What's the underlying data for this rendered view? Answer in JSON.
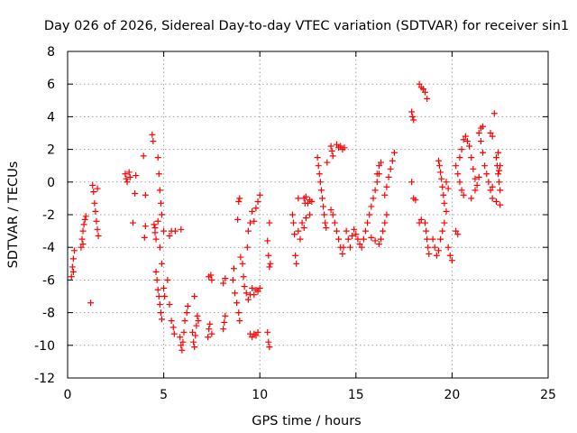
{
  "chart_data": {
    "type": "scatter",
    "title": "Day 026 of 2026, Sidereal Day-to-day VTEC variation (SDTVAR) for receiver sin1",
    "xlabel": "GPS time / hours",
    "ylabel": "SDTVAR / TECUs",
    "xlim": [
      0,
      25
    ],
    "ylim": [
      -12,
      8
    ],
    "xticks": [
      "0",
      "5",
      "10",
      "15",
      "20",
      "25"
    ],
    "yticks": [
      "-12",
      "-10",
      "-8",
      "-6",
      "-4",
      "-2",
      "0",
      "2",
      "4",
      "6",
      "8"
    ],
    "grid": true,
    "marker": "+",
    "color": "#ff0000",
    "series": [
      {
        "name": "sin1",
        "points": [
          [
            0.2,
            -5.8
          ],
          [
            0.25,
            -5.2
          ],
          [
            0.3,
            -4.7
          ],
          [
            0.35,
            -4.2
          ],
          [
            0.3,
            -5.5
          ],
          [
            0.7,
            -4.0
          ],
          [
            0.75,
            -3.5
          ],
          [
            0.8,
            -3.0
          ],
          [
            0.85,
            -2.6
          ],
          [
            0.9,
            -2.3
          ],
          [
            0.95,
            -2.1
          ],
          [
            0.8,
            -3.8
          ],
          [
            1.2,
            -7.4
          ],
          [
            1.3,
            -0.2
          ],
          [
            1.35,
            -0.6
          ],
          [
            1.4,
            -1.3
          ],
          [
            1.45,
            -1.8
          ],
          [
            1.5,
            -2.4
          ],
          [
            1.55,
            -2.9
          ],
          [
            1.6,
            -3.3
          ],
          [
            1.55,
            -0.4
          ],
          [
            3.0,
            0.5
          ],
          [
            3.05,
            0.2
          ],
          [
            3.1,
            0.0
          ],
          [
            3.2,
            0.6
          ],
          [
            3.25,
            0.3
          ],
          [
            3.4,
            -2.5
          ],
          [
            3.5,
            -0.7
          ],
          [
            3.55,
            0.4
          ],
          [
            3.95,
            1.6
          ],
          [
            4.0,
            -3.4
          ],
          [
            4.05,
            -0.8
          ],
          [
            4.05,
            -2.7
          ],
          [
            4.4,
            2.9
          ],
          [
            4.45,
            2.5
          ],
          [
            4.5,
            -2.6
          ],
          [
            4.55,
            -3.1
          ],
          [
            4.6,
            -3.5
          ],
          [
            4.6,
            -5.5
          ],
          [
            4.65,
            -6.0
          ],
          [
            4.7,
            -6.6
          ],
          [
            4.75,
            -7.0
          ],
          [
            4.8,
            -7.5
          ],
          [
            4.85,
            -8.0
          ],
          [
            4.9,
            -8.4
          ],
          [
            4.55,
            -2.8
          ],
          [
            4.7,
            -2.4
          ],
          [
            4.8,
            -4.0
          ],
          [
            4.9,
            -5.0
          ],
          [
            5.0,
            -6.5
          ],
          [
            5.05,
            -7.0
          ],
          [
            4.7,
            1.5
          ],
          [
            4.75,
            0.5
          ],
          [
            4.8,
            -0.5
          ],
          [
            4.85,
            -1.3
          ],
          [
            4.9,
            -2.0
          ],
          [
            5.0,
            -3.0
          ],
          [
            5.2,
            -6.0
          ],
          [
            5.3,
            -7.5
          ],
          [
            5.4,
            -8.5
          ],
          [
            5.5,
            -8.9
          ],
          [
            5.55,
            -9.3
          ],
          [
            5.3,
            -3.3
          ],
          [
            5.4,
            -3.0
          ],
          [
            5.6,
            -3.0
          ],
          [
            5.9,
            -2.9
          ],
          [
            5.85,
            -9.5
          ],
          [
            5.9,
            -10.0
          ],
          [
            5.95,
            -10.3
          ],
          [
            6.0,
            -9.8
          ],
          [
            6.05,
            -9.2
          ],
          [
            6.1,
            -8.5
          ],
          [
            6.2,
            -8.0
          ],
          [
            6.25,
            -7.6
          ],
          [
            6.5,
            -9.2
          ],
          [
            6.55,
            -9.8
          ],
          [
            6.6,
            -10.1
          ],
          [
            6.65,
            -9.4
          ],
          [
            6.7,
            -8.8
          ],
          [
            6.75,
            -8.2
          ],
          [
            6.6,
            -7.0
          ],
          [
            6.8,
            -8.5
          ],
          [
            7.3,
            -9.5
          ],
          [
            7.35,
            -9.0
          ],
          [
            7.4,
            -8.7
          ],
          [
            7.35,
            -5.8
          ],
          [
            7.45,
            -5.7
          ],
          [
            7.5,
            -6.0
          ],
          [
            7.5,
            -9.3
          ],
          [
            8.1,
            -9.0
          ],
          [
            8.15,
            -8.6
          ],
          [
            8.2,
            -8.2
          ],
          [
            8.1,
            -6.2
          ],
          [
            8.2,
            -5.9
          ],
          [
            8.6,
            -6.0
          ],
          [
            8.7,
            -6.8
          ],
          [
            8.8,
            -7.4
          ],
          [
            8.9,
            -8.0
          ],
          [
            8.95,
            -8.5
          ],
          [
            8.65,
            -5.3
          ],
          [
            8.9,
            -1.2
          ],
          [
            8.95,
            -1.0
          ],
          [
            8.85,
            -2.3
          ],
          [
            9.0,
            -4.6
          ],
          [
            9.1,
            -5.0
          ],
          [
            9.15,
            -5.8
          ],
          [
            9.2,
            -6.4
          ],
          [
            9.3,
            -6.8
          ],
          [
            9.4,
            -7.2
          ],
          [
            9.5,
            -6.9
          ],
          [
            9.6,
            -6.5
          ],
          [
            9.7,
            -6.9
          ],
          [
            9.8,
            -6.6
          ],
          [
            9.9,
            -6.7
          ],
          [
            10.0,
            -6.5
          ],
          [
            9.35,
            -4.0
          ],
          [
            9.4,
            -3.0
          ],
          [
            9.5,
            -2.5
          ],
          [
            9.6,
            -1.8
          ],
          [
            9.7,
            -2.4
          ],
          [
            9.8,
            -1.6
          ],
          [
            9.9,
            -1.2
          ],
          [
            10.0,
            -0.8
          ],
          [
            9.5,
            -9.3
          ],
          [
            9.6,
            -9.5
          ],
          [
            9.7,
            -9.3
          ],
          [
            9.8,
            -9.4
          ],
          [
            9.9,
            -9.2
          ],
          [
            10.4,
            -3.6
          ],
          [
            10.45,
            -4.5
          ],
          [
            10.5,
            -5.2
          ],
          [
            10.55,
            -5.0
          ],
          [
            10.5,
            -2.5
          ],
          [
            10.4,
            -9.2
          ],
          [
            10.45,
            -9.8
          ],
          [
            10.5,
            -10.1
          ],
          [
            11.7,
            -2.0
          ],
          [
            11.75,
            -2.5
          ],
          [
            11.8,
            -3.2
          ],
          [
            11.85,
            -4.5
          ],
          [
            11.9,
            -5.0
          ],
          [
            12.0,
            -3.0
          ],
          [
            12.1,
            -3.5
          ],
          [
            12.2,
            -2.5
          ],
          [
            12.3,
            -1.0
          ],
          [
            12.35,
            -1.3
          ],
          [
            12.4,
            -0.9
          ],
          [
            12.5,
            -1.3
          ],
          [
            12.6,
            -1.1
          ],
          [
            12.3,
            -2.8
          ],
          [
            12.4,
            -2.2
          ],
          [
            12.6,
            -2.0
          ],
          [
            12.0,
            -1.0
          ],
          [
            12.7,
            -1.2
          ],
          [
            13.0,
            1.5
          ],
          [
            13.05,
            1.0
          ],
          [
            13.1,
            0.5
          ],
          [
            13.15,
            0.0
          ],
          [
            13.2,
            -0.5
          ],
          [
            13.25,
            -1.0
          ],
          [
            13.3,
            -1.5
          ],
          [
            13.35,
            -2.0
          ],
          [
            13.4,
            -2.5
          ],
          [
            13.5,
            1.2
          ],
          [
            13.45,
            -2.8
          ],
          [
            13.7,
            2.2
          ],
          [
            13.75,
            1.9
          ],
          [
            13.8,
            1.6
          ],
          [
            13.7,
            -1.7
          ],
          [
            13.8,
            -2.0
          ],
          [
            13.9,
            -2.5
          ],
          [
            14.0,
            -3.0
          ],
          [
            14.1,
            -3.5
          ],
          [
            14.2,
            -4.0
          ],
          [
            14.3,
            -4.4
          ],
          [
            14.0,
            2.3
          ],
          [
            14.1,
            2.1
          ],
          [
            14.2,
            2.2
          ],
          [
            14.3,
            2.0
          ],
          [
            14.4,
            2.1
          ],
          [
            14.35,
            -4.0
          ],
          [
            14.5,
            -3.0
          ],
          [
            14.6,
            -3.5
          ],
          [
            14.7,
            -4.0
          ],
          [
            14.8,
            -3.3
          ],
          [
            14.9,
            -2.9
          ],
          [
            15.0,
            -3.2
          ],
          [
            15.1,
            -3.5
          ],
          [
            15.2,
            -3.8
          ],
          [
            15.3,
            -4.0
          ],
          [
            15.4,
            -3.5
          ],
          [
            15.5,
            -3.0
          ],
          [
            15.6,
            -2.5
          ],
          [
            15.7,
            -2.0
          ],
          [
            15.8,
            -1.5
          ],
          [
            15.9,
            -1.0
          ],
          [
            16.0,
            -0.5
          ],
          [
            16.1,
            0.0
          ],
          [
            16.2,
            0.5
          ],
          [
            16.3,
            -3.5
          ],
          [
            16.4,
            -3.0
          ],
          [
            16.5,
            -2.5
          ],
          [
            16.6,
            -2.0
          ],
          [
            16.2,
            -3.8
          ],
          [
            16.0,
            -3.6
          ],
          [
            15.8,
            -3.4
          ],
          [
            16.1,
            0.5
          ],
          [
            16.2,
            1.0
          ],
          [
            16.3,
            1.2
          ],
          [
            16.5,
            -0.8
          ],
          [
            16.6,
            -0.3
          ],
          [
            16.7,
            0.3
          ],
          [
            16.8,
            0.8
          ],
          [
            16.9,
            1.3
          ],
          [
            17.0,
            1.8
          ],
          [
            17.9,
            4.3
          ],
          [
            17.95,
            4.0
          ],
          [
            18.0,
            3.8
          ],
          [
            17.9,
            0.0
          ],
          [
            18.0,
            -1.0
          ],
          [
            18.1,
            -1.1
          ],
          [
            18.3,
            6.0
          ],
          [
            18.4,
            5.8
          ],
          [
            18.5,
            5.7
          ],
          [
            18.6,
            5.5
          ],
          [
            18.7,
            5.1
          ],
          [
            18.3,
            -2.5
          ],
          [
            18.4,
            -2.3
          ],
          [
            18.6,
            -2.5
          ],
          [
            18.65,
            -3.0
          ],
          [
            18.7,
            -3.5
          ],
          [
            18.75,
            -4.0
          ],
          [
            18.8,
            -4.4
          ],
          [
            19.0,
            -3.5
          ],
          [
            19.1,
            -4.0
          ],
          [
            19.2,
            -4.5
          ],
          [
            19.3,
            -4.2
          ],
          [
            19.4,
            -3.5
          ],
          [
            19.5,
            -3.0
          ],
          [
            19.6,
            -2.5
          ],
          [
            19.3,
            1.3
          ],
          [
            19.35,
            1.0
          ],
          [
            19.4,
            0.6
          ],
          [
            19.45,
            0.2
          ],
          [
            19.5,
            -0.3
          ],
          [
            19.55,
            -0.8
          ],
          [
            19.6,
            -1.3
          ],
          [
            19.7,
            -1.8
          ],
          [
            19.8,
            -4.0
          ],
          [
            19.9,
            -4.5
          ],
          [
            20.0,
            -4.8
          ],
          [
            19.7,
            0.0
          ],
          [
            19.8,
            -0.4
          ],
          [
            20.2,
            -3.0
          ],
          [
            20.3,
            -3.2
          ],
          [
            20.2,
            1.0
          ],
          [
            20.3,
            0.5
          ],
          [
            20.4,
            0.0
          ],
          [
            20.5,
            -0.5
          ],
          [
            20.6,
            -0.8
          ],
          [
            20.4,
            1.5
          ],
          [
            20.5,
            2.0
          ],
          [
            20.6,
            2.6
          ],
          [
            20.7,
            2.8
          ],
          [
            20.8,
            2.5
          ],
          [
            20.9,
            2.2
          ],
          [
            21.0,
            1.5
          ],
          [
            21.1,
            0.8
          ],
          [
            21.2,
            0.2
          ],
          [
            21.3,
            -0.2
          ],
          [
            21.4,
            0.3
          ],
          [
            21.0,
            -1.0
          ],
          [
            21.2,
            -0.5
          ],
          [
            21.4,
            3.0
          ],
          [
            21.5,
            3.3
          ],
          [
            21.6,
            3.4
          ],
          [
            21.5,
            2.5
          ],
          [
            21.6,
            1.8
          ],
          [
            21.7,
            1.0
          ],
          [
            21.8,
            0.5
          ],
          [
            21.9,
            0.0
          ],
          [
            22.0,
            -0.5
          ],
          [
            22.1,
            -1.0
          ],
          [
            22.0,
            3.0
          ],
          [
            22.1,
            2.8
          ],
          [
            22.2,
            4.2
          ],
          [
            22.3,
            1.5
          ],
          [
            22.35,
            1.0
          ],
          [
            22.4,
            0.5
          ],
          [
            22.45,
            0.0
          ],
          [
            22.5,
            -0.5
          ],
          [
            22.5,
            -1.4
          ],
          [
            22.3,
            -1.2
          ],
          [
            22.1,
            -0.3
          ],
          [
            22.5,
            1.0
          ],
          [
            22.45,
            0.7
          ],
          [
            22.4,
            1.8
          ]
        ]
      }
    ]
  }
}
